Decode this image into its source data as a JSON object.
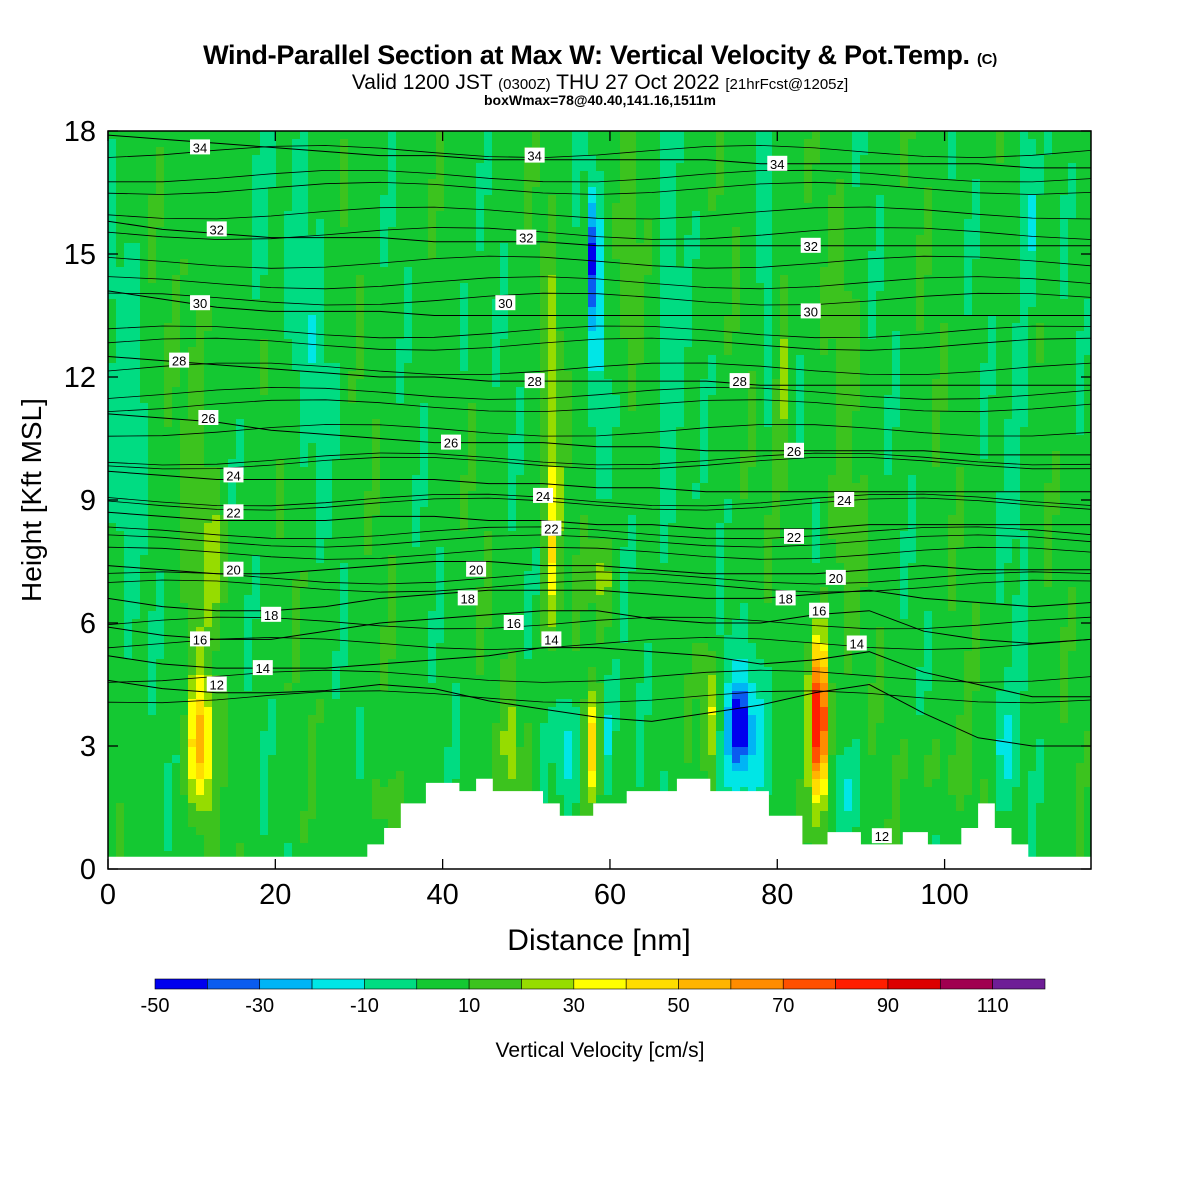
{
  "title": {
    "main": "Wind-Parallel Section at Max W: Vertical Velocity & Pot.Temp.",
    "main_suffix": "(C)",
    "valid_prefix": "Valid 1200 JST",
    "valid_utc": "(0300Z)",
    "valid_date": "THU 27 Oct 2022",
    "forecast": "[21hrFcst@1205z]",
    "boxmax": "boxWmax=78@40.40,141.16,1511m"
  },
  "chart_data": {
    "type": "heatmap",
    "title": "Wind-Parallel Section at Max W: Vertical Velocity & Pot.Temp.",
    "xlabel": "Distance [nm]",
    "ylabel": "Height [Kft MSL]",
    "xlim": [
      0,
      117.5
    ],
    "ylim": [
      0,
      18
    ],
    "xticks": [
      0,
      20,
      40,
      60,
      80,
      100
    ],
    "yticks": [
      0,
      3,
      6,
      9,
      12,
      15,
      18
    ],
    "colorbar": {
      "label": "Vertical Velocity [cm/s]",
      "boundaries": [
        -50,
        -40,
        -30,
        -20,
        -10,
        0,
        10,
        20,
        30,
        40,
        50,
        60,
        70,
        80,
        90,
        100,
        110,
        120
      ],
      "tick_labels": [
        "-50",
        "-30",
        "-10",
        "10",
        "30",
        "50",
        "70",
        "90",
        "110"
      ],
      "tick_values": [
        -50,
        -30,
        -10,
        10,
        30,
        50,
        70,
        90,
        110
      ],
      "colors": [
        "#0000ee",
        "#0a5cf0",
        "#00b4f5",
        "#00e6e6",
        "#00dc82",
        "#14c832",
        "#3cc31e",
        "#96dc00",
        "#ffff00",
        "#ffdc00",
        "#ffb400",
        "#ff8c00",
        "#ff5000",
        "#ff1e00",
        "#dc0000",
        "#a00050",
        "#6e1e96"
      ]
    },
    "background_velocity": 5,
    "velocity_features": [
      {
        "x": 11,
        "y": 3,
        "dx": 1.4,
        "dy": 1.5,
        "value": 50
      },
      {
        "x": 11,
        "y": 10,
        "dx": 2.0,
        "dy": 8,
        "value": 14
      },
      {
        "x": 13,
        "y": 7.5,
        "dx": 1.5,
        "dy": 1.5,
        "value": 22
      },
      {
        "x": 33,
        "y": 1.6,
        "dx": 2.4,
        "dy": 0.7,
        "value": 16
      },
      {
        "x": 48,
        "y": 3,
        "dx": 0.7,
        "dy": 1.5,
        "value": 28
      },
      {
        "x": 50,
        "y": 2.8,
        "dx": 0.9,
        "dy": 1.2,
        "value": 14
      },
      {
        "x": 36,
        "y": 3.5,
        "dx": 1.0,
        "dy": 1.5,
        "value": -6
      },
      {
        "x": 42,
        "y": 14,
        "dx": 1.0,
        "dy": 3,
        "value": -6
      },
      {
        "x": 53,
        "y": 11,
        "dx": 1.0,
        "dy": 4,
        "value": 24
      },
      {
        "x": 53,
        "y": 7.5,
        "dx": 1.0,
        "dy": 2,
        "value": 28
      },
      {
        "x": 58,
        "y": 3,
        "dx": 1.0,
        "dy": 1.2,
        "value": 45
      },
      {
        "x": 59.5,
        "y": 3.2,
        "dx": 1.0,
        "dy": 1.4,
        "value": -15
      },
      {
        "x": 55,
        "y": 3,
        "dx": 1.2,
        "dy": 1.2,
        "value": -14
      },
      {
        "x": 59,
        "y": 7.2,
        "dx": 1.3,
        "dy": 1.0,
        "value": 26
      },
      {
        "x": 58.5,
        "y": 13.5,
        "dx": 0.9,
        "dy": 3,
        "value": -14
      },
      {
        "x": 58,
        "y": 15,
        "dx": 0.5,
        "dy": 1.5,
        "value": -32
      },
      {
        "x": 62,
        "y": 14,
        "dx": 1.0,
        "dy": 3,
        "value": 14
      },
      {
        "x": 67,
        "y": 12,
        "dx": 1.2,
        "dy": 6,
        "value": -10
      },
      {
        "x": 72,
        "y": 3.9,
        "dx": 1.0,
        "dy": 1.4,
        "value": 40
      },
      {
        "x": 76,
        "y": 3.4,
        "dx": 3.5,
        "dy": 1.8,
        "value": -22
      },
      {
        "x": 75.5,
        "y": 3.5,
        "dx": 0.9,
        "dy": 0.7,
        "value": -40
      },
      {
        "x": 85,
        "y": 3.6,
        "dx": 1.1,
        "dy": 2.0,
        "value": 100
      },
      {
        "x": 80.5,
        "y": 12.5,
        "dx": 1.0,
        "dy": 3,
        "value": 26
      },
      {
        "x": 79,
        "y": 14,
        "dx": 1.0,
        "dy": 3,
        "value": -12
      },
      {
        "x": 88,
        "y": 10,
        "dx": 1.5,
        "dy": 5,
        "value": 14
      },
      {
        "x": 88,
        "y": 1.9,
        "dx": 2.5,
        "dy": 1.0,
        "value": -6
      },
      {
        "x": 100,
        "y": 2.5,
        "dx": 4.0,
        "dy": 1.2,
        "value": 14
      },
      {
        "x": 107,
        "y": 3,
        "dx": 1.5,
        "dy": 1.4,
        "value": -14
      },
      {
        "x": 109,
        "y": 12,
        "dx": 1.3,
        "dy": 5,
        "value": -6
      },
      {
        "x": 110,
        "y": 16,
        "dx": 0.8,
        "dy": 2,
        "value": -16
      },
      {
        "x": 18,
        "y": 16,
        "dx": 1.2,
        "dy": 2,
        "value": -14
      },
      {
        "x": 24,
        "y": 13,
        "dx": 3,
        "dy": 3,
        "value": -4
      },
      {
        "x": 2,
        "y": 10,
        "dx": 2,
        "dy": 6,
        "value": -4
      }
    ],
    "terrain": {
      "x": [
        0,
        31,
        31,
        33,
        33,
        35,
        35,
        38,
        38,
        42,
        42,
        44,
        44,
        46,
        46,
        48,
        48,
        52,
        52,
        54,
        54,
        58,
        58,
        62,
        62,
        68,
        68,
        72,
        72,
        79,
        79,
        83,
        83,
        86,
        86,
        90,
        90,
        95,
        95,
        98,
        98,
        102,
        102,
        104,
        104,
        106,
        106,
        108,
        108,
        110,
        110,
        117.5
      ],
      "y": [
        0.3,
        0.3,
        0.6,
        0.6,
        1.0,
        1.0,
        1.6,
        1.6,
        2.1,
        2.1,
        1.9,
        1.9,
        2.2,
        2.2,
        1.9,
        1.9,
        1.9,
        1.9,
        1.6,
        1.6,
        1.3,
        1.3,
        1.6,
        1.6,
        1.9,
        1.9,
        2.2,
        2.2,
        1.9,
        1.9,
        1.3,
        1.3,
        0.6,
        0.6,
        0.9,
        0.9,
        0.6,
        0.6,
        0.9,
        0.9,
        0.6,
        0.6,
        1.0,
        1.0,
        1.6,
        1.6,
        1.0,
        1.0,
        0.6,
        0.6,
        0.3,
        0.3
      ]
    },
    "theta_contours": [
      {
        "level": 12,
        "heights": [
          4.6,
          4.4,
          4.3,
          4.3,
          4.35,
          4.5,
          4.4,
          4.1,
          3.9,
          3.7,
          3.6,
          3.8,
          4.0,
          4.3,
          4.5,
          3.8,
          3.2,
          3.0,
          3.0
        ]
      },
      {
        "level": 14,
        "heights": [
          5.2,
          5.0,
          4.9,
          4.9,
          4.9,
          5.0,
          5.1,
          5.2,
          5.4,
          5.4,
          5.3,
          5.2,
          5.0,
          5.1,
          5.3,
          4.8,
          4.5,
          4.2,
          4.2
        ]
      },
      {
        "level": 16,
        "heights": [
          5.9,
          5.7,
          5.6,
          5.6,
          5.8,
          6.0,
          6.1,
          6.2,
          6.3,
          6.3,
          6.1,
          6.0,
          6.0,
          6.2,
          6.3,
          5.8,
          5.6,
          5.5,
          5.6
        ]
      },
      {
        "level": 18,
        "heights": [
          6.6,
          6.4,
          6.3,
          6.3,
          6.4,
          6.6,
          6.7,
          6.8,
          6.8,
          6.8,
          6.7,
          6.6,
          6.6,
          6.7,
          6.8,
          6.6,
          6.5,
          6.4,
          6.5
        ]
      },
      {
        "level": 20,
        "heights": [
          7.4,
          7.3,
          7.2,
          7.2,
          7.3,
          7.4,
          7.5,
          7.5,
          7.4,
          7.4,
          7.3,
          7.2,
          7.2,
          7.2,
          7.3,
          7.4,
          7.3,
          7.3,
          7.3
        ]
      },
      {
        "level": 22,
        "heights": [
          8.7,
          8.6,
          8.5,
          8.5,
          8.5,
          8.6,
          8.6,
          8.5,
          8.5,
          8.4,
          8.4,
          8.3,
          8.3,
          8.3,
          8.4,
          8.4,
          8.4,
          8.4,
          8.4
        ]
      },
      {
        "level": 24,
        "heights": [
          9.7,
          9.6,
          9.5,
          9.5,
          9.5,
          9.5,
          9.5,
          9.4,
          9.4,
          9.3,
          9.3,
          9.2,
          9.2,
          9.2,
          9.2,
          9.2,
          9.2,
          9.2,
          9.2
        ]
      },
      {
        "level": 26,
        "heights": [
          11.1,
          11.0,
          10.9,
          10.7,
          10.6,
          10.5,
          10.4,
          10.4,
          10.4,
          10.3,
          10.3,
          10.2,
          10.2,
          10.2,
          10.2,
          10.2,
          10.1,
          10.1,
          10.1
        ]
      },
      {
        "level": 28,
        "heights": [
          12.5,
          12.4,
          12.3,
          12.2,
          12.1,
          12.0,
          12.0,
          11.9,
          11.9,
          11.9,
          11.9,
          11.9,
          11.8,
          11.8,
          11.8,
          11.8,
          11.8,
          11.8,
          11.8
        ]
      },
      {
        "level": 30,
        "heights": [
          14.1,
          13.9,
          13.7,
          13.6,
          13.6,
          13.6,
          13.5,
          13.5,
          13.5,
          13.5,
          13.5,
          13.5,
          13.5,
          13.5,
          13.5,
          13.5,
          13.5,
          13.5,
          13.5
        ]
      },
      {
        "level": 32,
        "heights": [
          15.8,
          15.6,
          15.5,
          15.4,
          15.4,
          15.4,
          15.3,
          15.3,
          15.3,
          15.2,
          15.2,
          15.2,
          15.2,
          15.2,
          15.2,
          15.2,
          15.2,
          15.2,
          15.2
        ]
      },
      {
        "level": 34,
        "heights": [
          17.9,
          17.8,
          17.7,
          17.6,
          17.5,
          17.4,
          17.4,
          17.3,
          17.3,
          17.3,
          17.3,
          17.3,
          17.2,
          17.2,
          17.2,
          17.2,
          17.2,
          17.1,
          17.1
        ]
      }
    ],
    "contour_x": [
      0,
      6.5,
      13,
      19.5,
      26,
      32.5,
      39,
      45.5,
      52,
      58.5,
      65,
      71.5,
      78,
      84.5,
      91,
      97.5,
      104,
      110.5,
      117.5
    ],
    "thin_contour_levels": [
      4.2,
      4.7,
      5.5,
      6.0,
      6.9,
      7.1,
      7.7,
      8.0,
      8.2,
      8.9,
      9.0,
      9.9,
      10.0,
      10.7,
      11.3,
      11.6,
      12.2,
      12.8,
      13.1,
      13.9,
      14.3,
      14.8,
      15.5,
      16.0,
      16.6,
      16.9,
      17.5
    ],
    "contour_labels": [
      {
        "text": "34",
        "x": 11,
        "y": 17.6
      },
      {
        "text": "34",
        "x": 51,
        "y": 17.4
      },
      {
        "text": "34",
        "x": 80,
        "y": 17.2
      },
      {
        "text": "32",
        "x": 13,
        "y": 15.6
      },
      {
        "text": "32",
        "x": 50,
        "y": 15.4
      },
      {
        "text": "32",
        "x": 84,
        "y": 15.2
      },
      {
        "text": "30",
        "x": 11,
        "y": 13.8
      },
      {
        "text": "30",
        "x": 47.5,
        "y": 13.8
      },
      {
        "text": "30",
        "x": 84,
        "y": 13.6
      },
      {
        "text": "28",
        "x": 8.5,
        "y": 12.4
      },
      {
        "text": "28",
        "x": 51,
        "y": 11.9
      },
      {
        "text": "28",
        "x": 75.5,
        "y": 11.9
      },
      {
        "text": "26",
        "x": 12,
        "y": 11.0
      },
      {
        "text": "26",
        "x": 41,
        "y": 10.4
      },
      {
        "text": "26",
        "x": 82,
        "y": 10.2
      },
      {
        "text": "24",
        "x": 15,
        "y": 9.6
      },
      {
        "text": "24",
        "x": 52,
        "y": 9.1
      },
      {
        "text": "24",
        "x": 88,
        "y": 9.0
      },
      {
        "text": "22",
        "x": 15,
        "y": 8.7
      },
      {
        "text": "22",
        "x": 53,
        "y": 8.3
      },
      {
        "text": "22",
        "x": 82,
        "y": 8.1
      },
      {
        "text": "20",
        "x": 15,
        "y": 7.3
      },
      {
        "text": "20",
        "x": 44,
        "y": 7.3
      },
      {
        "text": "20",
        "x": 87,
        "y": 7.1
      },
      {
        "text": "18",
        "x": 19.5,
        "y": 6.2
      },
      {
        "text": "18",
        "x": 43,
        "y": 6.6
      },
      {
        "text": "18",
        "x": 81,
        "y": 6.6
      },
      {
        "text": "16",
        "x": 11,
        "y": 5.6
      },
      {
        "text": "16",
        "x": 48.5,
        "y": 6.0
      },
      {
        "text": "16",
        "x": 85,
        "y": 6.3
      },
      {
        "text": "14",
        "x": 18.5,
        "y": 4.9
      },
      {
        "text": "14",
        "x": 53,
        "y": 5.6
      },
      {
        "text": "14",
        "x": 89.5,
        "y": 5.5
      },
      {
        "text": "12",
        "x": 13,
        "y": 4.5
      },
      {
        "text": "12",
        "x": 92.5,
        "y": 0.8
      }
    ]
  }
}
